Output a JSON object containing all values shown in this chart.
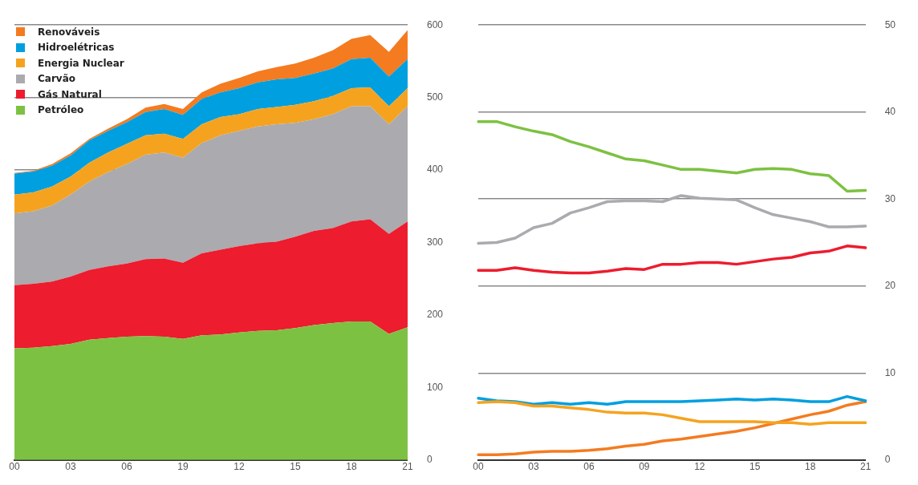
{
  "chart_data": [
    {
      "type": "area",
      "stacked": true,
      "legend": "top left",
      "grid": "y",
      "marker": "none",
      "categories": [
        "00",
        null,
        null,
        "03",
        null,
        null,
        "06",
        null,
        null,
        "19",
        null,
        null,
        "12",
        null,
        null,
        "15",
        null,
        null,
        "18",
        null,
        null,
        "21"
      ],
      "ylim": [
        0,
        600
      ],
      "yticks": [
        0,
        100,
        200,
        300,
        400,
        500,
        600
      ],
      "series": [
        {
          "name": "Petróleo",
          "color": "#7dc142",
          "values": [
            154,
            155,
            157,
            160,
            166,
            168,
            170,
            171,
            170,
            167,
            172,
            173,
            176,
            178,
            179,
            182,
            186,
            189,
            191,
            191,
            174,
            183
          ]
        },
        {
          "name": "Gás Natural",
          "color": "#ed1c2e",
          "values": [
            87,
            88,
            89,
            93,
            96,
            99,
            101,
            106,
            108,
            105,
            113,
            117,
            119,
            121,
            122,
            126,
            130,
            131,
            138,
            141,
            138,
            146
          ]
        },
        {
          "name": "Carvão",
          "color": "#abaaae",
          "values": [
            99,
            100,
            105,
            113,
            122,
            130,
            137,
            144,
            146,
            145,
            152,
            158,
            159,
            161,
            162,
            157,
            154,
            157,
            159,
            156,
            151,
            159
          ]
        },
        {
          "name": "Energia Nuclear",
          "color": "#f5a31f",
          "values": [
            26,
            26,
            26,
            25,
            26,
            27,
            28,
            27,
            26,
            26,
            26,
            25,
            23,
            24,
            24,
            25,
            25,
            25,
            25,
            26,
            25,
            25
          ]
        },
        {
          "name": "Hidroelétricas",
          "color": "#009fdf",
          "values": [
            29,
            29,
            29,
            29,
            31,
            30,
            30,
            32,
            34,
            33,
            35,
            34,
            36,
            37,
            38,
            37,
            38,
            38,
            40,
            41,
            41,
            40
          ]
        },
        {
          "name": "Renováveis",
          "color": "#f47b20",
          "values": [
            1,
            1,
            2,
            3,
            2,
            3,
            4,
            6,
            7,
            8,
            9,
            12,
            14,
            15,
            17,
            20,
            22,
            25,
            28,
            31,
            34,
            40
          ]
        }
      ]
    },
    {
      "type": "line",
      "grid": "y",
      "marker": "none",
      "categories": [
        "00",
        null,
        null,
        "03",
        null,
        null,
        "06",
        null,
        null,
        "09",
        null,
        null,
        "12",
        null,
        null,
        "15",
        null,
        null,
        "18",
        null,
        null,
        "21"
      ],
      "ylim": [
        0,
        50
      ],
      "yticks": [
        0,
        10,
        20,
        30,
        40,
        50
      ],
      "series": [
        {
          "color": "#7dc142",
          "values": [
            38.9,
            38.9,
            38.3,
            37.8,
            37.4,
            36.6,
            36.0,
            35.3,
            34.6,
            34.4,
            33.9,
            33.4,
            33.4,
            33.2,
            33.0,
            33.4,
            33.5,
            33.4,
            32.9,
            32.7,
            30.9,
            31.0
          ]
        },
        {
          "color": "#ed1c2e",
          "values": [
            21.8,
            21.8,
            22.1,
            21.8,
            21.6,
            21.5,
            21.5,
            21.7,
            22.0,
            21.9,
            22.5,
            22.5,
            22.7,
            22.7,
            22.5,
            22.8,
            23.1,
            23.3,
            23.8,
            24.0,
            24.6,
            24.4
          ]
        },
        {
          "color": "#abaaae",
          "values": [
            24.9,
            25.0,
            25.5,
            26.7,
            27.2,
            28.4,
            29.0,
            29.7,
            29.8,
            29.8,
            29.7,
            30.4,
            30.1,
            30.0,
            29.9,
            29.0,
            28.2,
            27.8,
            27.4,
            26.8,
            26.8,
            26.9
          ]
        },
        {
          "color": "#f5a31f",
          "values": [
            6.6,
            6.7,
            6.6,
            6.2,
            6.2,
            6.0,
            5.8,
            5.5,
            5.4,
            5.4,
            5.2,
            4.8,
            4.4,
            4.4,
            4.4,
            4.4,
            4.3,
            4.3,
            4.1,
            4.3,
            4.3,
            4.3
          ]
        },
        {
          "color": "#009fdf",
          "values": [
            7.1,
            6.8,
            6.7,
            6.4,
            6.6,
            6.4,
            6.6,
            6.4,
            6.7,
            6.7,
            6.7,
            6.7,
            6.8,
            6.9,
            7.0,
            6.9,
            7.0,
            6.9,
            6.7,
            6.7,
            7.3,
            6.8
          ]
        },
        {
          "color": "#f47b20",
          "values": [
            0.6,
            0.6,
            0.7,
            0.9,
            1.0,
            1.0,
            1.1,
            1.3,
            1.6,
            1.8,
            2.2,
            2.4,
            2.7,
            3.0,
            3.3,
            3.7,
            4.2,
            4.7,
            5.2,
            5.6,
            6.3,
            6.7
          ]
        }
      ]
    }
  ]
}
